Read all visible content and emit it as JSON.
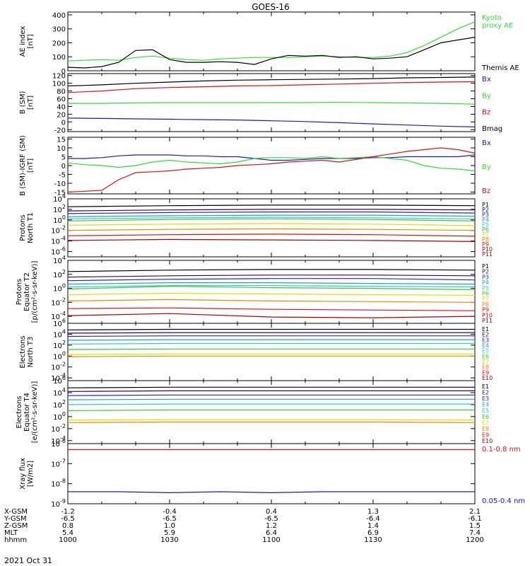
{
  "title": "GOES-16",
  "date_label": "2021 Oct 31",
  "colors": {
    "black": "#000000",
    "green": "#33dd33",
    "blue": "#1a1acc",
    "red": "#dd1111"
  },
  "chart_data": [
    {
      "type": "line",
      "ylabel_lines": [
        "AE index",
        "[nT]"
      ],
      "yticks": [
        "0",
        "100",
        "200",
        "300",
        "400"
      ],
      "ylim": [
        0,
        420
      ],
      "x": [
        1000,
        1005,
        1010,
        1015,
        1020,
        1025,
        1030,
        1035,
        1040,
        1045,
        1050,
        1055,
        1100,
        1105,
        1110,
        1115,
        1120,
        1125,
        1130,
        1135,
        1140,
        1145,
        1150,
        1155,
        1200
      ],
      "series": [
        {
          "name": "Kyoto\nproxy AE",
          "color": "#33dd33",
          "values": [
            70,
            75,
            80,
            75,
            95,
            105,
            90,
            80,
            75,
            85,
            90,
            95,
            95,
            95,
            100,
            105,
            100,
            95,
            95,
            105,
            130,
            180,
            240,
            300,
            350
          ]
        },
        {
          "name": "Themis AE",
          "color": "#000000",
          "values": [
            25,
            20,
            30,
            60,
            145,
            150,
            80,
            60,
            60,
            65,
            60,
            45,
            85,
            110,
            105,
            110,
            95,
            100,
            85,
            90,
            100,
            150,
            200,
            220,
            240
          ]
        }
      ]
    },
    {
      "type": "line",
      "ylabel_lines": [
        "B (SM)",
        "[nT]"
      ],
      "yticks": [
        "-20",
        "0",
        "20",
        "40",
        "60",
        "80",
        "100",
        "120"
      ],
      "ylim": [
        -25,
        125
      ],
      "x": [
        1000,
        1010,
        1020,
        1030,
        1040,
        1050,
        1100,
        1110,
        1120,
        1130,
        1140,
        1150,
        1200
      ],
      "series": [
        {
          "name": "Bx",
          "color": "#1a1acc",
          "values": [
            10,
            9,
            8,
            7,
            6,
            5,
            3,
            1,
            -2,
            -5,
            -8,
            -11,
            -13
          ]
        },
        {
          "name": "By",
          "color": "#33dd33",
          "values": [
            48,
            48,
            49,
            50,
            50,
            50,
            50,
            50,
            51,
            50,
            49,
            48,
            46
          ]
        },
        {
          "name": "Bz",
          "color": "#dd1111",
          "values": [
            76,
            80,
            86,
            89,
            91,
            93,
            94,
            96,
            98,
            100,
            102,
            103,
            104
          ]
        },
        {
          "name": "Bmag",
          "color": "#000000",
          "values": [
            93,
            96,
            100,
            103,
            106,
            108,
            109,
            110,
            111,
            112,
            114,
            115,
            116
          ]
        }
      ]
    },
    {
      "type": "line",
      "ylabel_lines": [
        "B (SM)-IGRF (SM)",
        "[nT]"
      ],
      "yticks": [
        "-15",
        "-10",
        "-5",
        "0",
        "5",
        "10",
        "15"
      ],
      "ylim": [
        -16,
        16
      ],
      "x": [
        1000,
        1005,
        1010,
        1015,
        1020,
        1025,
        1030,
        1035,
        1040,
        1045,
        1050,
        1055,
        1100,
        1105,
        1110,
        1115,
        1120,
        1125,
        1130,
        1135,
        1140,
        1145,
        1150,
        1155,
        1200
      ],
      "series": [
        {
          "name": "Bx",
          "color": "#1a1acc",
          "values": [
            4,
            4,
            4.5,
            5.5,
            6,
            6,
            6,
            5.5,
            5.5,
            5,
            5,
            4,
            3,
            3,
            3.5,
            4,
            4,
            4,
            4.5,
            4.5,
            5,
            5,
            5,
            5,
            6
          ]
        },
        {
          "name": "By",
          "color": "#33dd33",
          "values": [
            1.5,
            0.5,
            0,
            -1,
            0,
            2,
            3,
            2,
            1.5,
            1,
            2,
            4,
            4.5,
            4.5,
            4,
            5,
            4,
            4.5,
            5,
            4,
            3,
            0,
            -1.5,
            -2,
            -3
          ]
        },
        {
          "name": "Bz",
          "color": "#dd1111",
          "values": [
            -15,
            -14.5,
            -14,
            -8,
            -4,
            -3.5,
            -3,
            -2,
            -1.5,
            -1,
            0,
            0.5,
            1,
            2,
            2.5,
            3,
            2,
            3.5,
            5,
            6.5,
            8,
            9,
            10,
            9,
            7
          ]
        }
      ]
    },
    {
      "type": "line",
      "log": true,
      "ylabel_lines": [
        "Protons",
        "North T1"
      ],
      "yticks": [
        "10^-6",
        "10^-4",
        "10^-2",
        "10^0",
        "10^2",
        "10^4"
      ],
      "ylim": [
        -7,
        4
      ],
      "x": [
        1000,
        1030,
        1100,
        1130,
        1200
      ],
      "series": [
        {
          "name": "P1",
          "color": "#000000",
          "values": [
            2.5,
            2.7,
            2.8,
            2.8,
            2.7
          ]
        },
        {
          "name": "P2",
          "color": "#3a0066",
          "values": [
            1.7,
            1.9,
            2.0,
            2.0,
            1.9
          ]
        },
        {
          "name": "P3",
          "color": "#2222dd",
          "values": [
            1.2,
            1.4,
            1.5,
            1.5,
            1.3
          ]
        },
        {
          "name": "P4",
          "color": "#2299ee",
          "values": [
            0.6,
            0.8,
            0.9,
            0.9,
            0.7
          ]
        },
        {
          "name": "P5",
          "color": "#33cccc",
          "values": [
            0.2,
            0.4,
            0.5,
            0.4,
            0.2
          ]
        },
        {
          "name": "P6",
          "color": "#33cc33",
          "values": [
            -0.2,
            0.1,
            0.2,
            0.1,
            -0.2
          ]
        },
        {
          "name": "P7",
          "color": "#dddd00",
          "values": [
            -1.0,
            -0.8,
            -0.7,
            -0.8,
            -1.1
          ]
        },
        {
          "name": "P8",
          "color": "#ee8800",
          "values": [
            -2.0,
            -1.8,
            -1.7,
            -1.8,
            -2.0
          ]
        },
        {
          "name": "P9",
          "color": "#dd1111",
          "values": [
            -3.0,
            -2.8,
            -2.7,
            -2.8,
            -3.1
          ]
        },
        {
          "name": "P10",
          "color": "#aa0000",
          "values": [
            -3.9,
            -3.7,
            -3.8,
            -3.9,
            -4.1
          ]
        },
        {
          "name": "P11",
          "color": "#aa0000",
          "values": [
            null,
            null,
            null,
            null,
            null
          ]
        }
      ]
    },
    {
      "type": "line",
      "log": true,
      "ylabel_lines": [
        "Protons",
        "Equator T2",
        "[p/(cm²-s-sr-keV)]"
      ],
      "yticks": [
        "10^-4",
        "10^-2",
        "10^0",
        "10^2",
        "10^4"
      ],
      "ylim": [
        -5,
        4
      ],
      "x": [
        1000,
        1030,
        1100,
        1130,
        1200
      ],
      "series": [
        {
          "name": "P1",
          "color": "#000000",
          "values": [
            2.4,
            2.6,
            2.7,
            2.7,
            2.6
          ]
        },
        {
          "name": "P2",
          "color": "#3a0066",
          "values": [
            1.6,
            1.8,
            1.9,
            1.9,
            1.8
          ]
        },
        {
          "name": "P3",
          "color": "#2222dd",
          "values": [
            1.1,
            1.3,
            1.4,
            1.4,
            1.2
          ]
        },
        {
          "name": "P4",
          "color": "#2299ee",
          "values": [
            0.6,
            0.8,
            0.8,
            0.7,
            0.6
          ]
        },
        {
          "name": "P5",
          "color": "#33cccc",
          "values": [
            0.2,
            0.4,
            0.4,
            0.3,
            0.2
          ]
        },
        {
          "name": "P6",
          "color": "#33cc33",
          "values": [
            -0.1,
            0.3,
            0.1,
            0.0,
            -0.2
          ]
        },
        {
          "name": "P7",
          "color": "#dddd00",
          "values": [
            -0.9,
            -0.7,
            -0.8,
            -0.9,
            -1.0
          ]
        },
        {
          "name": "P8",
          "color": "#ee8800",
          "values": [
            -1.8,
            -1.6,
            -1.8,
            -1.9,
            -2.0
          ]
        },
        {
          "name": "P9",
          "color": "#dd1111",
          "values": [
            -2.9,
            -2.8,
            -3.0,
            -3.1,
            -3.2
          ]
        },
        {
          "name": "P10",
          "color": "#aa0000",
          "values": [
            -3.9,
            -3.6,
            -4.1,
            -4.2,
            -4.0
          ]
        },
        {
          "name": "P11",
          "color": "#aa0000",
          "values": [
            null,
            null,
            null,
            null,
            null
          ]
        }
      ]
    },
    {
      "type": "line",
      "log": true,
      "ylabel_lines": [
        "Electrons",
        "North T3"
      ],
      "yticks": [
        "10^-4",
        "10^-2",
        "10^0",
        "10^2",
        "10^4",
        "10^6"
      ],
      "ylim": [
        -4.5,
        6
      ],
      "x": [
        1000,
        1030,
        1100,
        1130,
        1200
      ],
      "series": [
        {
          "name": "E1",
          "color": "#000000",
          "values": [
            4.8,
            4.9,
            4.9,
            4.9,
            4.9
          ]
        },
        {
          "name": "E2",
          "color": "#3a0066",
          "values": [
            4.2,
            4.3,
            4.3,
            4.3,
            4.3
          ]
        },
        {
          "name": "E3",
          "color": "#2222dd",
          "values": [
            3.6,
            3.7,
            3.7,
            3.7,
            3.7
          ]
        },
        {
          "name": "E4",
          "color": "#2299ee",
          "values": [
            2.9,
            3.0,
            3.0,
            3.0,
            3.0
          ]
        },
        {
          "name": "E5",
          "color": "#33cccc",
          "values": [
            2.2,
            2.3,
            2.3,
            2.3,
            2.3
          ]
        },
        {
          "name": "E6",
          "color": "#33cc33",
          "values": [
            1.2,
            1.3,
            1.3,
            1.3,
            1.3
          ]
        },
        {
          "name": "E7",
          "color": "#dddd00",
          "values": [
            0.3,
            0.4,
            0.4,
            0.4,
            0.4
          ]
        },
        {
          "name": "E8",
          "color": "#ee8800",
          "values": [
            -0.1,
            0.0,
            0.0,
            0.0,
            0.0
          ]
        },
        {
          "name": "E9",
          "color": "#dd1111",
          "values": [
            null,
            null,
            null,
            null,
            null
          ]
        },
        {
          "name": "E10",
          "color": "#aa0000",
          "values": [
            null,
            null,
            null,
            null,
            null
          ]
        }
      ]
    },
    {
      "type": "line",
      "log": true,
      "ylabel_lines": [
        "Electrons",
        "Equator T4",
        "[e/(cm²-s-sr-keV)]"
      ],
      "yticks": [
        "10^-4",
        "10^-2",
        "10^0",
        "10^2",
        "10^4",
        "10^6"
      ],
      "ylim": [
        -4.5,
        6
      ],
      "x": [
        1000,
        1030,
        1100,
        1130,
        1200
      ],
      "series": [
        {
          "name": "E1",
          "color": "#000000",
          "values": [
            4.8,
            4.9,
            4.9,
            4.9,
            4.9
          ]
        },
        {
          "name": "E2",
          "color": "#3a0066",
          "values": [
            4.2,
            4.3,
            4.3,
            4.3,
            4.3
          ]
        },
        {
          "name": "E3",
          "color": "#2222dd",
          "values": [
            3.5,
            3.6,
            3.6,
            3.6,
            3.6
          ]
        },
        {
          "name": "E4",
          "color": "#2299ee",
          "values": [
            2.8,
            2.9,
            2.9,
            2.9,
            2.9
          ]
        },
        {
          "name": "E5",
          "color": "#33cccc",
          "values": [
            2.0,
            2.1,
            2.1,
            2.1,
            2.1
          ]
        },
        {
          "name": "E6",
          "color": "#33cc33",
          "values": [
            1.0,
            1.1,
            1.1,
            1.1,
            1.1
          ]
        },
        {
          "name": "E7",
          "color": "#dddd00",
          "values": [
            -0.6,
            -0.5,
            -0.5,
            -0.5,
            -0.6
          ]
        },
        {
          "name": "E8",
          "color": "#ee8800",
          "values": [
            -1.0,
            -0.9,
            -0.9,
            -0.9,
            -1.0
          ]
        },
        {
          "name": "E9",
          "color": "#dd1111",
          "values": [
            null,
            null,
            null,
            null,
            null
          ]
        },
        {
          "name": "E10",
          "color": "#aa0000",
          "values": [
            null,
            null,
            null,
            null,
            null
          ]
        }
      ]
    },
    {
      "type": "line",
      "log": true,
      "ylabel_lines": [
        "Xray flux",
        "[W/m2]"
      ],
      "yticks": [
        "10^-9",
        "10^-8",
        "10^-7",
        "10^-6"
      ],
      "ylim": [
        -9,
        -6
      ],
      "x": [
        1000,
        1015,
        1030,
        1045,
        1100,
        1115,
        1130,
        1145,
        1200
      ],
      "series": [
        {
          "name": "0.1-0.8 nm",
          "color": "#dd1111",
          "values": [
            -6.3,
            -6.3,
            -6.3,
            -6.3,
            -6.3,
            -6.3,
            -6.3,
            -6.3,
            -6.3
          ]
        },
        {
          "name": "0.05-0.4 nm",
          "color": "#1a1acc",
          "values": [
            -8.4,
            -8.4,
            -8.45,
            -8.4,
            -8.45,
            -8.4,
            -8.4,
            -8.4,
            -8.4
          ]
        }
      ]
    }
  ],
  "xaxis_rows": [
    {
      "label": "X-GSM",
      "values": [
        "-1.2",
        "-0.4",
        "0.4",
        "1.3",
        "2.1"
      ]
    },
    {
      "label": "Y-GSM",
      "values": [
        "-6.5",
        "-6.5",
        "-6.5",
        "-6.4",
        "-6.1"
      ]
    },
    {
      "label": "Z-GSM",
      "values": [
        "0.8",
        "1.0",
        "1.2",
        "1.4",
        "1.5"
      ]
    },
    {
      "label": "MLT",
      "values": [
        "5.4",
        "5.9",
        "6.4",
        "6.9",
        "7.4"
      ]
    },
    {
      "label": "hhmm",
      "values": [
        "1000",
        "1030",
        "1100",
        "1130",
        "1200"
      ]
    }
  ]
}
